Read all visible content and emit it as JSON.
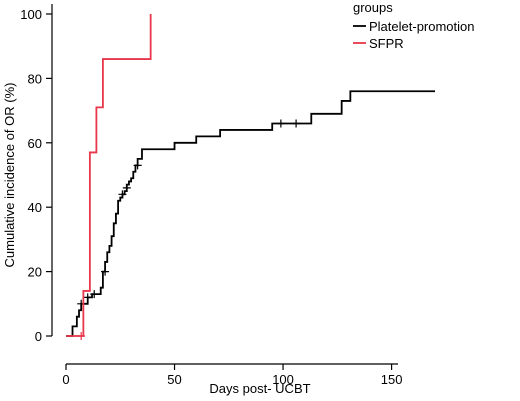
{
  "chart_data": {
    "type": "line",
    "title": "",
    "xlabel": "Days post- UCBT",
    "ylabel": "Cumulative incidence of OR (%)",
    "xlim": [
      0,
      170
    ],
    "ylim": [
      0,
      100
    ],
    "x_ticks": [
      0,
      50,
      100,
      150
    ],
    "y_ticks": [
      0,
      20,
      40,
      60,
      80,
      100
    ],
    "grid": false,
    "legend": {
      "title": "groups",
      "position": "top-right",
      "entries": [
        "Platelet-promotion",
        "SFPR"
      ]
    },
    "series": [
      {
        "name": "Platelet-promotion",
        "color": "#000000",
        "step": true,
        "x": [
          0,
          3,
          5,
          6,
          7,
          10,
          12,
          16,
          17,
          18,
          19,
          20,
          21,
          22,
          23,
          24,
          25,
          26,
          27,
          28,
          29,
          30,
          31,
          32,
          33,
          35,
          50,
          60,
          71,
          95,
          113,
          127,
          131,
          170
        ],
        "y": [
          0,
          3,
          6,
          8,
          10,
          12,
          13,
          15,
          20,
          23,
          26,
          28,
          31,
          35,
          38,
          42,
          43,
          44,
          45,
          47,
          48,
          49,
          51,
          53,
          55,
          58,
          60,
          62,
          64,
          66,
          69,
          73,
          76,
          76
        ],
        "censored": [
          {
            "x": 7,
            "y": 10
          },
          {
            "x": 10,
            "y": 12
          },
          {
            "x": 13,
            "y": 13
          },
          {
            "x": 18,
            "y": 20
          },
          {
            "x": 26,
            "y": 44
          },
          {
            "x": 28,
            "y": 46
          },
          {
            "x": 33,
            "y": 53
          },
          {
            "x": 99,
            "y": 66
          },
          {
            "x": 106,
            "y": 66
          }
        ]
      },
      {
        "name": "SFPR",
        "color": "#e8364a",
        "step": true,
        "x": [
          0,
          8,
          11,
          14,
          17,
          39
        ],
        "y": [
          0,
          14,
          57,
          71,
          86,
          100
        ],
        "censored": [
          {
            "x": 7,
            "y": 0
          }
        ]
      }
    ]
  }
}
